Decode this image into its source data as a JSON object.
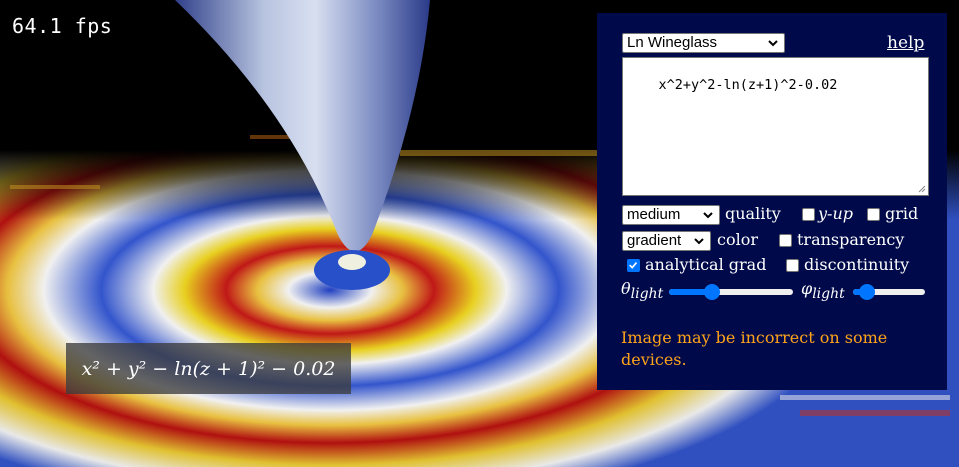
{
  "fps": "64.1 fps",
  "formula_display": "x² + y² − ln(z + 1)² − 0.02",
  "panel": {
    "preset": "Ln Wineglass",
    "help": "help",
    "expression": "x^2+y^2-ln(z+1)^2-0.02",
    "quality_value": "medium",
    "quality_label": "quality",
    "yup_label": "y-up",
    "grid_label": "grid",
    "color_value": "gradient",
    "color_label": "color",
    "transparency_label": "transparency",
    "analytical_grad_label": "analytical grad",
    "discontinuity_label": "discontinuity",
    "theta_label": "θ",
    "theta_sub": "light",
    "phi_label": "φ",
    "phi_sub": "light",
    "theta_value": 0.35,
    "phi_value": 0.2,
    "yup_checked": false,
    "grid_checked": false,
    "transparency_checked": false,
    "analytical_grad_checked": true,
    "discontinuity_checked": false,
    "warning": "Image may be incorrect on some devices."
  },
  "colors": {
    "panel_bg": "#000a4a",
    "warning": "#ffa31a",
    "accent": "#0075ff"
  }
}
